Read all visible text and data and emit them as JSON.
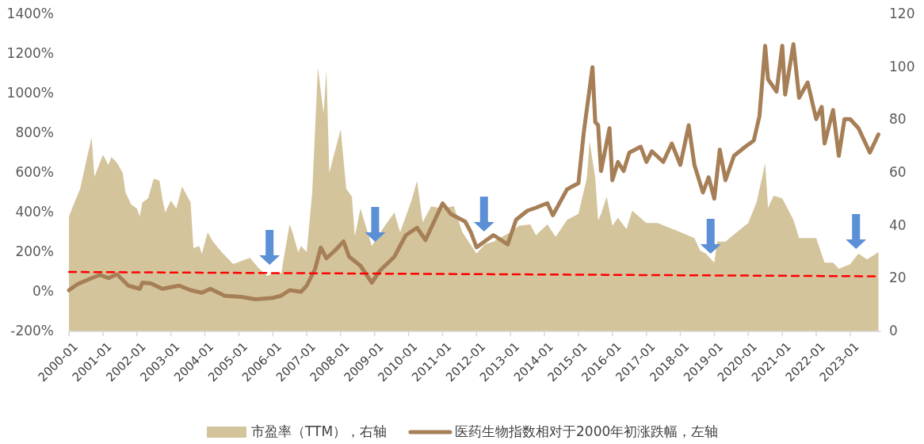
{
  "chart_data": {
    "type": "line",
    "xlim": [
      "2000-01",
      "2023-12"
    ],
    "xticks": [
      "2000-01",
      "2001-01",
      "2002-01",
      "2003-01",
      "2004-01",
      "2005-01",
      "2006-01",
      "2007-01",
      "2008-01",
      "2009-01",
      "2010-01",
      "2011-01",
      "2012-01",
      "2013-01",
      "2014-01",
      "2015-01",
      "2016-01",
      "2017-01",
      "2018-01",
      "2019-01",
      "2020-01",
      "2021-01",
      "2022-01",
      "2023-01"
    ],
    "ylim": [
      -200,
      1400
    ],
    "yticks": [
      {
        "value": -200,
        "label": "-200%"
      },
      {
        "value": 0,
        "label": "0%"
      },
      {
        "value": 200,
        "label": "200%"
      },
      {
        "value": 400,
        "label": "400%"
      },
      {
        "value": 600,
        "label": "600%"
      },
      {
        "value": 800,
        "label": "800%"
      },
      {
        "value": 1000,
        "label": "1000%"
      },
      {
        "value": 1200,
        "label": "1200%"
      },
      {
        "value": 1400,
        "label": "1400%"
      }
    ],
    "y2lim": [
      0,
      120
    ],
    "y2ticks": [
      0,
      20,
      40,
      60,
      80,
      100,
      120
    ],
    "legend": "bottom",
    "series": [
      {
        "type": "area",
        "axis": "y2",
        "name": "市盈率（TTM），右轴",
        "color": "#d4c49c",
        "x": [
          "2000-01",
          "2000-03",
          "2000-05",
          "2000-07",
          "2000-09",
          "2000-10",
          "2001-01",
          "2001-03",
          "2001-04",
          "2001-06",
          "2001-08",
          "2001-09",
          "2001-11",
          "2002-01",
          "2002-02",
          "2002-03",
          "2002-05",
          "2002-07",
          "2002-09",
          "2002-10",
          "2002-11",
          "2003-01",
          "2003-03",
          "2003-05",
          "2003-08",
          "2003-09",
          "2003-11",
          "2003-12",
          "2004-02",
          "2004-04",
          "2004-07",
          "2004-11",
          "2005-05",
          "2005-08",
          "2005-11",
          "2006-02",
          "2006-04",
          "2006-07",
          "2006-08",
          "2006-10",
          "2006-11",
          "2007-01",
          "2007-03",
          "2007-05",
          "2007-07",
          "2007-08",
          "2007-09",
          "2008-01",
          "2008-03",
          "2008-05",
          "2008-06",
          "2008-08",
          "2008-12",
          "2009-04",
          "2009-08",
          "2009-10",
          "2010-02",
          "2010-04",
          "2010-06",
          "2010-09",
          "2011-01",
          "2011-05",
          "2011-08",
          "2012-01",
          "2012-04",
          "2012-07",
          "2013-01",
          "2013-04",
          "2013-08",
          "2013-10",
          "2014-02",
          "2014-05",
          "2014-09",
          "2015-01",
          "2015-04",
          "2015-05",
          "2015-07",
          "2015-08",
          "2015-09",
          "2015-11",
          "2016-01",
          "2016-03",
          "2016-06",
          "2016-08",
          "2017-01",
          "2017-05",
          "2017-09",
          "2018-01",
          "2018-06",
          "2018-08",
          "2018-10",
          "2019-01",
          "2019-02",
          "2019-05",
          "2019-09",
          "2020-01",
          "2020-04",
          "2020-07",
          "2020-08",
          "2020-10",
          "2021-01",
          "2021-05",
          "2021-07",
          "2022-01",
          "2022-04",
          "2022-07",
          "2022-09",
          "2023-01",
          "2023-04",
          "2023-07",
          "2023-11"
        ],
        "values": [
          43.5,
          48.8,
          54,
          63.8,
          73.5,
          58.5,
          66.8,
          63,
          66,
          63.8,
          60,
          52.5,
          48,
          46.5,
          43.5,
          48.8,
          50.3,
          57.8,
          57,
          50.3,
          45,
          49.5,
          46.5,
          54.8,
          48.8,
          31.5,
          32.3,
          29.3,
          37.5,
          33.8,
          30,
          25.5,
          27.8,
          24,
          21,
          22.5,
          21.8,
          40.5,
          37.5,
          30,
          32.3,
          30,
          52.5,
          99.8,
          82.5,
          99,
          60,
          76.5,
          54,
          51,
          36,
          46.5,
          32.3,
          39,
          45,
          37.5,
          49.5,
          57,
          41.3,
          47.3,
          46.5,
          47.4,
          37.6,
          29.5,
          33,
          34,
          37.6,
          40,
          40.5,
          36.4,
          40.5,
          35.8,
          42.2,
          44.5,
          58,
          72,
          58,
          42,
          44.5,
          51,
          40,
          43,
          38.7,
          45.7,
          41,
          41,
          39.3,
          37.6,
          35.3,
          30.6,
          29.5,
          26,
          34,
          34,
          37.6,
          41,
          49,
          63.6,
          46.8,
          51.4,
          50.3,
          42.2,
          35.3,
          35.3,
          26,
          26,
          23.7,
          25.4,
          29.5,
          27.2,
          30
        ]
      },
      {
        "name": "医药生物指数相对于2000年初涨跌幅，左轴",
        "color": "#a67f57",
        "x": [
          "2000-01",
          "2000-04",
          "2000-09",
          "2000-12",
          "2001-03",
          "2001-06",
          "2001-10",
          "2002-02",
          "2002-03",
          "2002-06",
          "2002-10",
          "2003-04",
          "2003-08",
          "2003-12",
          "2004-03",
          "2004-08",
          "2005-02",
          "2005-07",
          "2006-01",
          "2006-04",
          "2006-07",
          "2006-11",
          "2007-01",
          "2007-04",
          "2007-06",
          "2007-08",
          "2007-11",
          "2008-02",
          "2008-04",
          "2008-08",
          "2008-12",
          "2009-03",
          "2009-08",
          "2009-12",
          "2010-04",
          "2010-07",
          "2011-01",
          "2011-04",
          "2011-09",
          "2011-11",
          "2012-01",
          "2012-04",
          "2012-07",
          "2012-12",
          "2013-03",
          "2013-07",
          "2013-10",
          "2014-02",
          "2014-04",
          "2014-09",
          "2015-01",
          "2015-03",
          "2015-06",
          "2015-07",
          "2015-08",
          "2015-09",
          "2015-12",
          "2016-01",
          "2016-03",
          "2016-05",
          "2016-07",
          "2016-11",
          "2017-01",
          "2017-03",
          "2017-07",
          "2017-10",
          "2018-01",
          "2018-04",
          "2018-06",
          "2018-09",
          "2018-11",
          "2019-01",
          "2019-03",
          "2019-05",
          "2019-08",
          "2019-12",
          "2020-03",
          "2020-05",
          "2020-07",
          "2020-08",
          "2020-11",
          "2021-01",
          "2021-02",
          "2021-05",
          "2021-07",
          "2021-10",
          "2022-01",
          "2022-03",
          "2022-04",
          "2022-07",
          "2022-09",
          "2022-11",
          "2023-01",
          "2023-04",
          "2023-08",
          "2023-11"
        ],
        "values": [
          8,
          38,
          69,
          85,
          69,
          88,
          31,
          15,
          46,
          42,
          15,
          31,
          8,
          -5,
          15,
          -20,
          -26,
          -38,
          -31,
          -20,
          8,
          0,
          31,
          115,
          223,
          169,
          208,
          254,
          177,
          131,
          46,
          108,
          177,
          285,
          323,
          261,
          446,
          392,
          354,
          301,
          224,
          255,
          286,
          239,
          363,
          409,
          424,
          447,
          386,
          517,
          548,
          810,
          1133,
          856,
          840,
          609,
          825,
          563,
          655,
          609,
          702,
          732,
          655,
          709,
          655,
          748,
          640,
          840,
          640,
          501,
          578,
          470,
          717,
          563,
          686,
          732,
          763,
          887,
          1241,
          1072,
          1010,
          1241,
          995,
          1249,
          979,
          1056,
          871,
          933,
          748,
          917,
          686,
          871,
          871,
          825,
          702,
          794
        ]
      },
      {
        "color": "#ff0000",
        "line_style": "dashed",
        "x": [
          "2000-01",
          "2023-11"
        ],
        "values": [
          100,
          78
        ]
      }
    ]
  }
}
